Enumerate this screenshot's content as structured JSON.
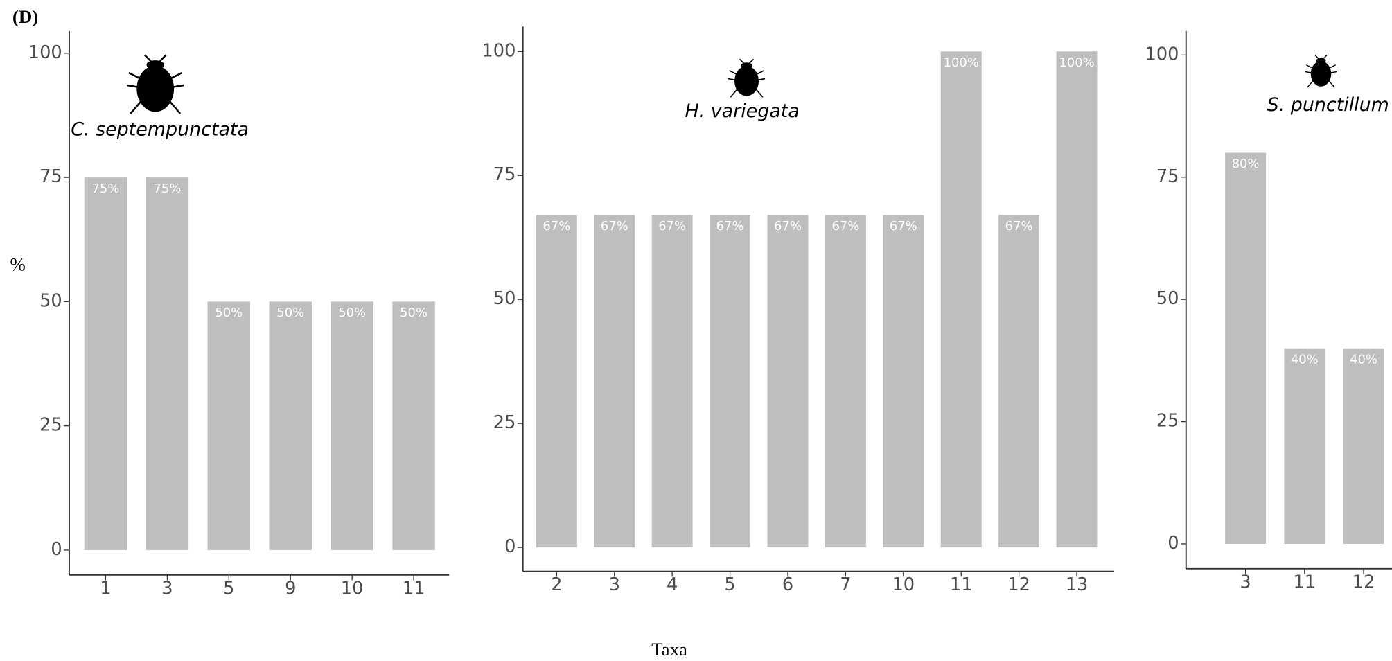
{
  "panel_label": "(D)",
  "ylabel": "%",
  "xlabel": "Taxa",
  "chart_data": [
    {
      "type": "bar",
      "title": "C. septempunctata",
      "categories": [
        "1",
        "3",
        "5",
        "9",
        "10",
        "11"
      ],
      "values": [
        75,
        75,
        50,
        50,
        50,
        50
      ],
      "value_labels": [
        "75%",
        "75%",
        "50%",
        "50%",
        "50%",
        "50%"
      ],
      "color": "#bebebe",
      "ylim": [
        0,
        100
      ],
      "yticks": [
        0,
        25,
        50,
        75,
        100
      ]
    },
    {
      "type": "bar",
      "title": "H. variegata",
      "categories": [
        "2",
        "3",
        "4",
        "5",
        "6",
        "7",
        "10",
        "11",
        "12",
        "13"
      ],
      "values": [
        67,
        67,
        67,
        67,
        67,
        67,
        67,
        100,
        67,
        100
      ],
      "value_labels": [
        "67%",
        "67%",
        "67%",
        "67%",
        "67%",
        "67%",
        "67%",
        "100%",
        "67%",
        "100%"
      ],
      "color": "#bebebe",
      "ylim": [
        0,
        100
      ],
      "yticks": [
        0,
        25,
        50,
        75,
        100
      ]
    },
    {
      "type": "bar",
      "title": "S. punctillum",
      "categories": [
        "3",
        "11",
        "12"
      ],
      "values": [
        80,
        40,
        40
      ],
      "value_labels": [
        "80%",
        "40%",
        "40%"
      ],
      "color": "#bebebe",
      "ylim": [
        0,
        100
      ],
      "yticks": [
        0,
        25,
        50,
        75,
        100
      ]
    }
  ]
}
